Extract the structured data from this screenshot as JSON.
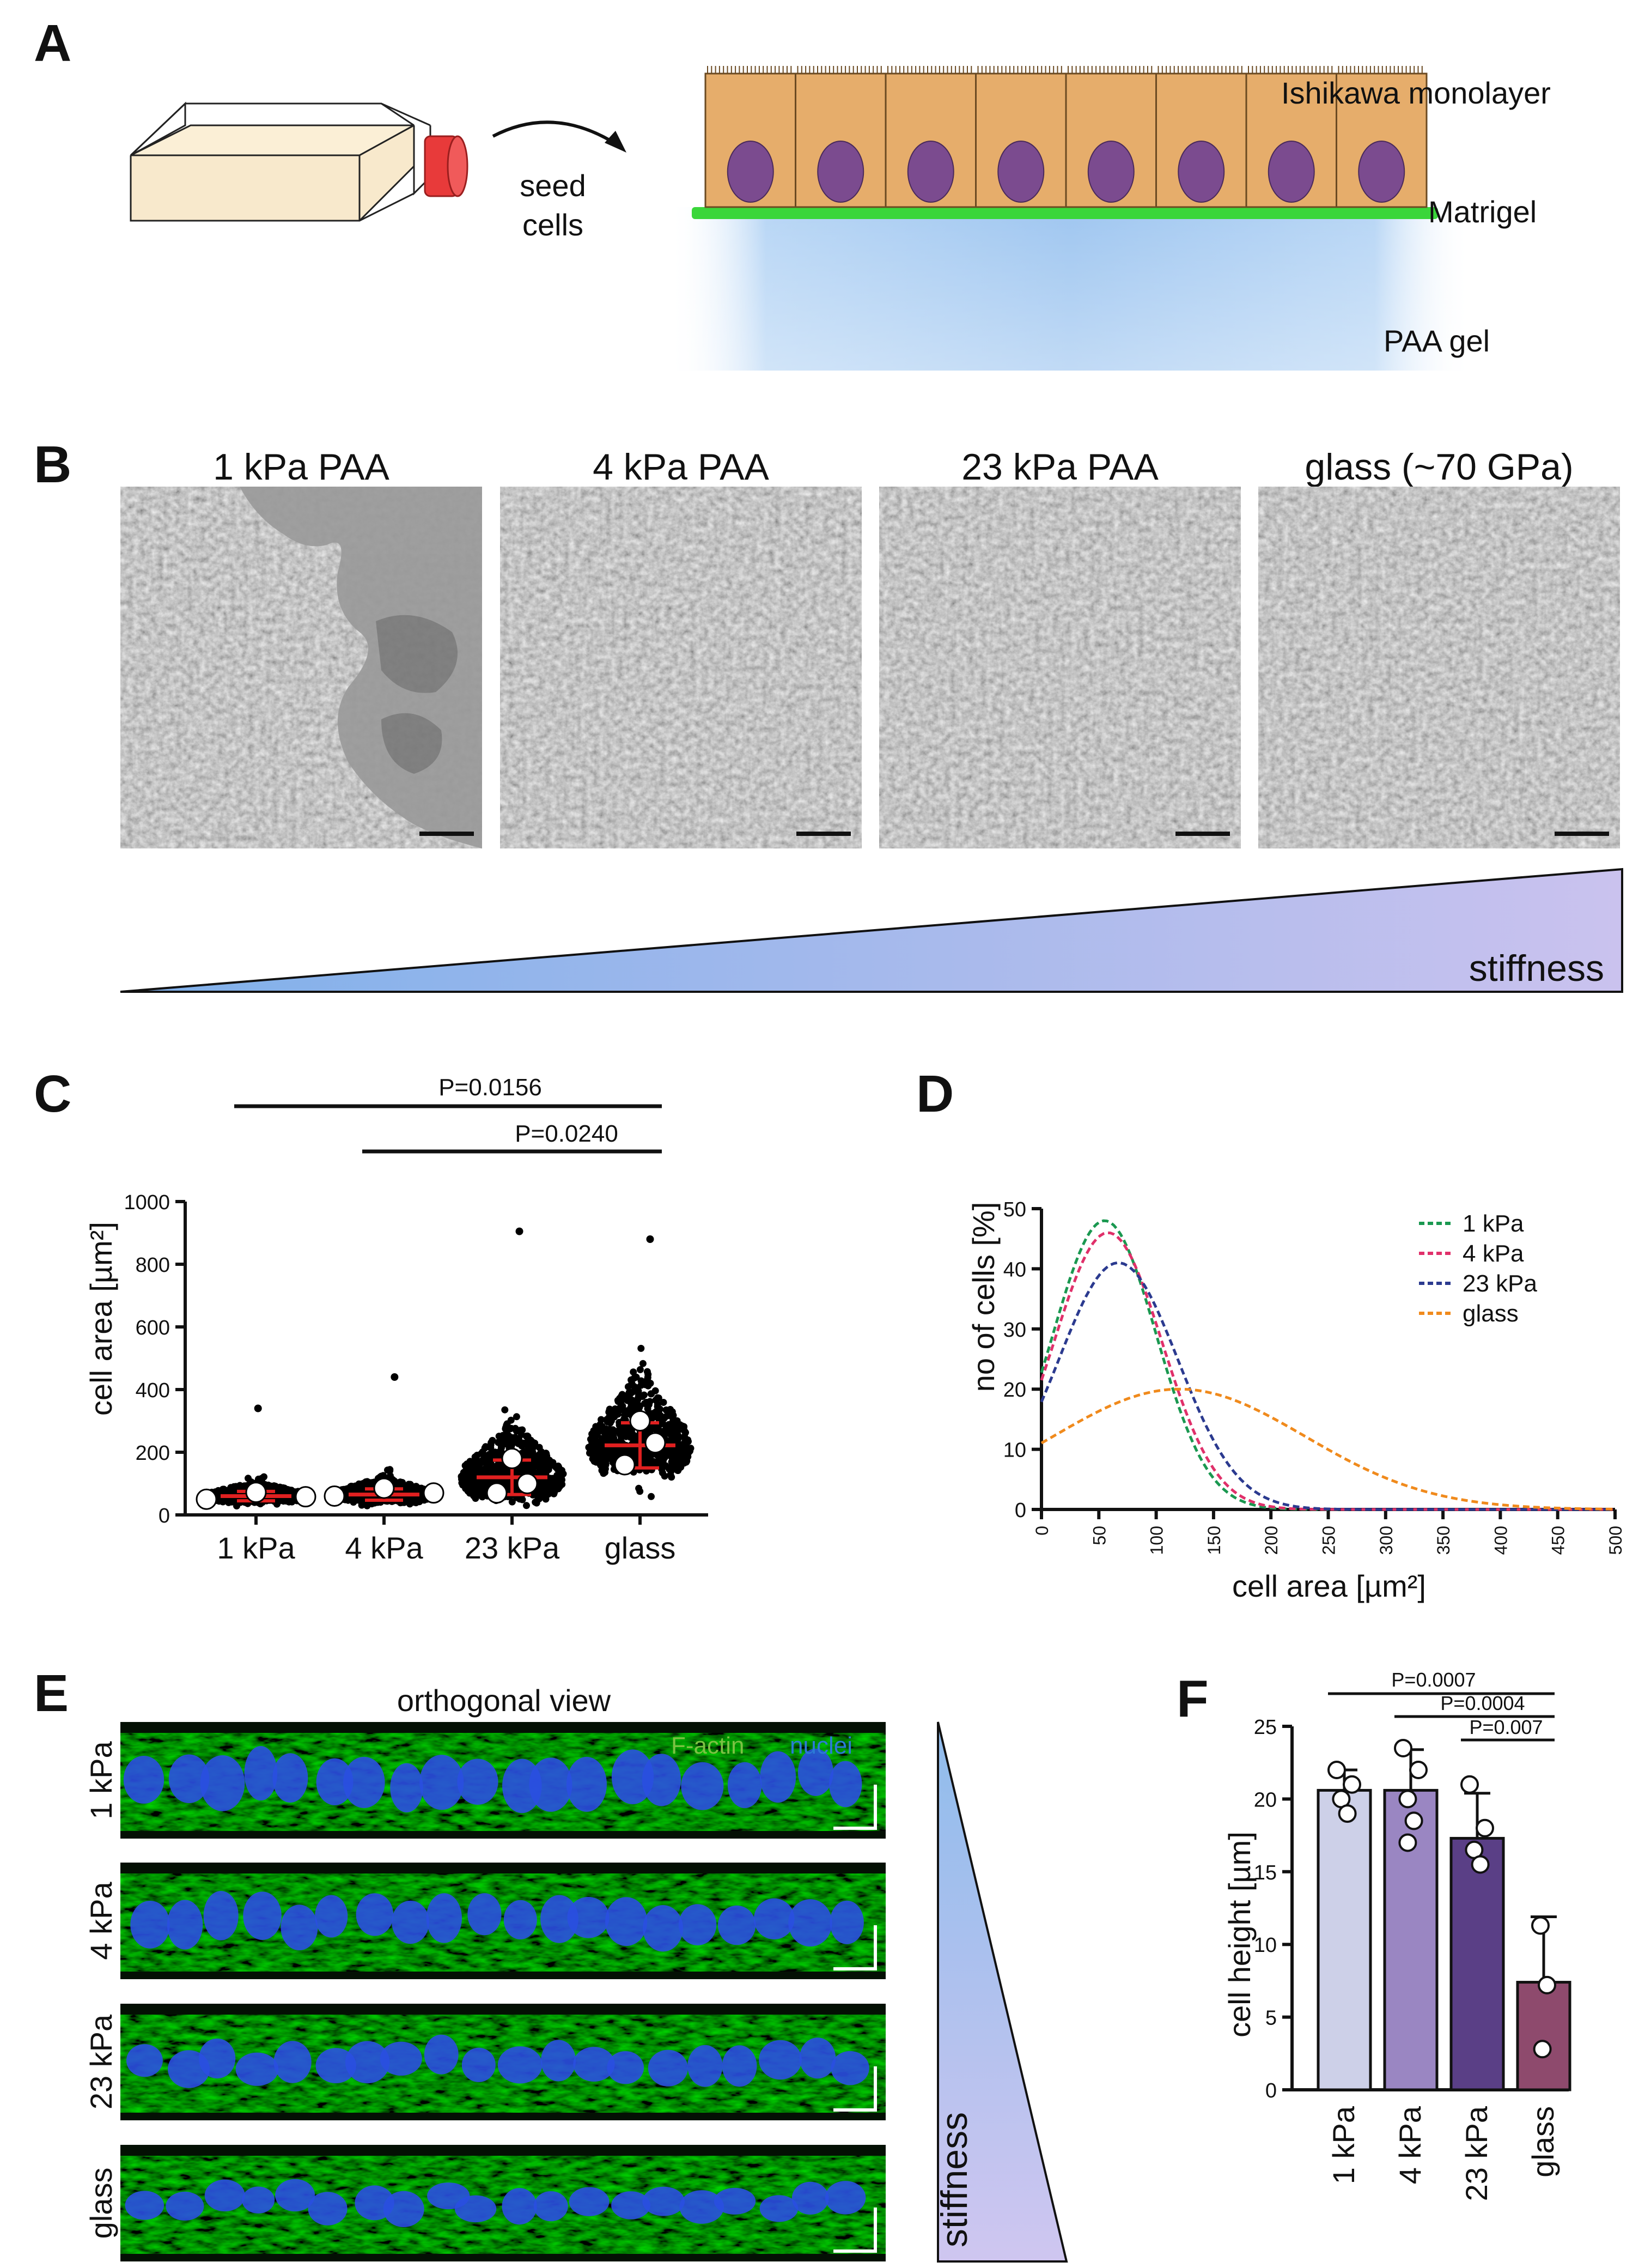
{
  "panels": {
    "A": {
      "letter": "A",
      "seed_label_1": "seed",
      "seed_label_2": "cells",
      "monolayer_label": "Ishikawa monolayer",
      "matrigel_label": "Matrigel",
      "gel_label": "PAA gel",
      "colors": {
        "cell": "#e6ad6b",
        "nucleus": "#7b4b8f",
        "matrigel": "#3ad63a",
        "gel": "#a9ccf0",
        "flask_cap": "#e83a3a"
      }
    },
    "B": {
      "letter": "B",
      "conditions": [
        "1 kPa PAA",
        "4 kPa PAA",
        "23 kPa PAA",
        "glass (~70 GPa)"
      ],
      "stiffness_label": "stiffness"
    },
    "C": {
      "letter": "C",
      "ylabel": "cell area [µm²]",
      "p_values": [
        "P=0.0156",
        "P=0.0240"
      ]
    },
    "D": {
      "letter": "D",
      "ylabel": "no of cells [%]",
      "xlabel": "cell area [µm²]",
      "legend": [
        "1 kPa",
        "4 kPa",
        "23 kPa",
        "glass"
      ]
    },
    "E": {
      "letter": "E",
      "title": "orthogonal view",
      "stain_1": "F-actin",
      "stain_2": "nuclei",
      "rows": [
        "1 kPa",
        "4 kPa",
        "23 kPa",
        "glass"
      ],
      "stiffness_label": "stiffness"
    },
    "F": {
      "letter": "F",
      "ylabel": "cell height [µm]",
      "p_values": [
        "P=0.0007",
        "P=0.0004",
        "P=0.007"
      ]
    }
  },
  "chart_data": [
    {
      "id": "C",
      "type": "scatter",
      "categories": [
        "1 kPa",
        "4 kPa",
        "23 kPa",
        "glass"
      ],
      "ylabel": "cell area [µm²]",
      "ylim": [
        0,
        1000
      ],
      "yticks": [
        0,
        200,
        400,
        600,
        800,
        1000
      ],
      "means": [
        60,
        65,
        120,
        222
      ],
      "sd": [
        15,
        18,
        55,
        72
      ],
      "replicate_means": [
        [
          50,
          72,
          58
        ],
        [
          60,
          85,
          70
        ],
        [
          70,
          180,
          100
        ],
        [
          160,
          300,
          230
        ]
      ],
      "max_values": [
        340,
        440,
        905,
        880
      ],
      "comparisons": [
        {
          "from": "1 kPa",
          "to": "glass",
          "label": "P=0.0156"
        },
        {
          "from": "4 kPa",
          "to": "glass",
          "label": "P=0.0240"
        }
      ],
      "colors": {
        "points": "#000000",
        "mean_bar": "#e02020",
        "replicate": "#ffffff"
      }
    },
    {
      "id": "D",
      "type": "line",
      "xlabel": "cell area [µm²]",
      "ylabel": "no of cells [%]",
      "xlim": [
        0,
        500
      ],
      "ylim": [
        0,
        50
      ],
      "xticks": [
        0,
        50,
        100,
        150,
        200,
        250,
        300,
        350,
        400,
        450,
        500
      ],
      "yticks": [
        0,
        10,
        20,
        30,
        40,
        50
      ],
      "legend_position": "top-right",
      "series": [
        {
          "name": "1 kPa",
          "color": "#1a9850",
          "peak_x": 55,
          "peak_y": 48,
          "sigma": 45
        },
        {
          "name": "4 kPa",
          "color": "#e0306a",
          "peak_x": 58,
          "peak_y": 46,
          "sigma": 47
        },
        {
          "name": "23 kPa",
          "color": "#2b3a8f",
          "peak_x": 67,
          "peak_y": 41,
          "sigma": 52
        },
        {
          "name": "glass",
          "color": "#f08a1c",
          "peak_x": 120,
          "peak_y": 20,
          "sigma": 110
        }
      ]
    },
    {
      "id": "F",
      "type": "bar",
      "categories": [
        "1 kPa",
        "4 kPa",
        "23 kPa",
        "glass"
      ],
      "values": [
        20.6,
        20.6,
        17.3,
        7.4
      ],
      "errors": [
        1.4,
        2.8,
        3.1,
        4.5
      ],
      "replicates": [
        [
          22,
          21,
          20,
          19
        ],
        [
          23.5,
          22,
          20,
          18.5,
          17
        ],
        [
          21,
          18,
          16.5,
          15.5
        ],
        [
          11.3,
          7.2,
          2.8
        ]
      ],
      "ylabel": "cell height [µm]",
      "ylim": [
        0,
        25
      ],
      "yticks": [
        0,
        5,
        10,
        15,
        20,
        25
      ],
      "comparisons": [
        {
          "from": "1 kPa",
          "to": "glass",
          "label": "P=0.0007"
        },
        {
          "from": "4 kPa",
          "to": "glass",
          "label": "P=0.0004"
        },
        {
          "from": "23 kPa",
          "to": "glass",
          "label": "P=0.007"
        }
      ],
      "colors": [
        "#cdd0e8",
        "#9a86c2",
        "#5a3f86",
        "#8e4a6d"
      ]
    }
  ]
}
